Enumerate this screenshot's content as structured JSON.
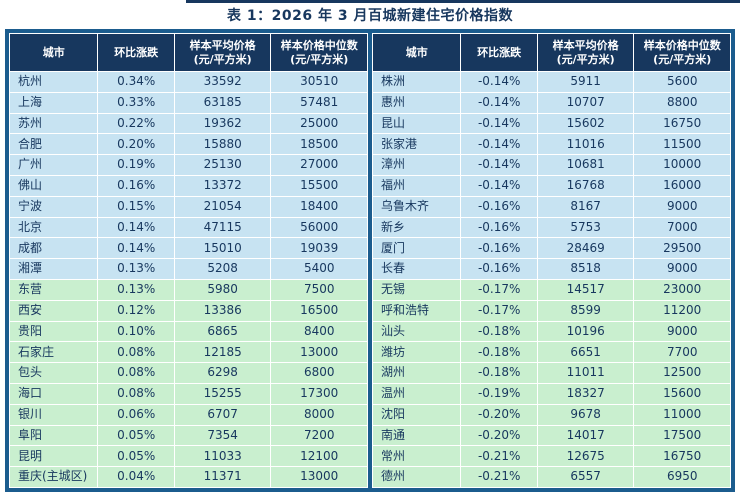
{
  "title": "表 1：2026 年 3 月百城新建住宅价格指数",
  "columns": [
    {
      "label": "城市",
      "sub": ""
    },
    {
      "label": "环比涨跌",
      "sub": ""
    },
    {
      "label": "样本平均价格",
      "sub": "(元/平方米)"
    },
    {
      "label": "样本价格中位数",
      "sub": "(元/平方米)"
    }
  ],
  "colors": {
    "header_bg": "#17375e",
    "panel_bg": "#1b5c8e",
    "row_blue": "#c7e3f2",
    "row_green": "#c9efcf",
    "text": "#17375e",
    "title_text": "#17375e"
  },
  "left_table": {
    "rows": [
      {
        "city": "杭州",
        "change": "0.34%",
        "avg": "33592",
        "median": "30510",
        "tone": "blue"
      },
      {
        "city": "上海",
        "change": "0.33%",
        "avg": "63185",
        "median": "57481",
        "tone": "blue"
      },
      {
        "city": "苏州",
        "change": "0.22%",
        "avg": "19362",
        "median": "25000",
        "tone": "blue"
      },
      {
        "city": "合肥",
        "change": "0.20%",
        "avg": "15880",
        "median": "18500",
        "tone": "blue"
      },
      {
        "city": "广州",
        "change": "0.19%",
        "avg": "25130",
        "median": "27000",
        "tone": "blue"
      },
      {
        "city": "佛山",
        "change": "0.16%",
        "avg": "13372",
        "median": "15500",
        "tone": "blue"
      },
      {
        "city": "宁波",
        "change": "0.15%",
        "avg": "21054",
        "median": "18400",
        "tone": "blue"
      },
      {
        "city": "北京",
        "change": "0.14%",
        "avg": "47115",
        "median": "56000",
        "tone": "blue"
      },
      {
        "city": "成都",
        "change": "0.14%",
        "avg": "15010",
        "median": "19039",
        "tone": "blue"
      },
      {
        "city": "湘潭",
        "change": "0.13%",
        "avg": "5208",
        "median": "5400",
        "tone": "blue"
      },
      {
        "city": "东营",
        "change": "0.13%",
        "avg": "5980",
        "median": "7500",
        "tone": "green"
      },
      {
        "city": "西安",
        "change": "0.12%",
        "avg": "13386",
        "median": "16500",
        "tone": "green"
      },
      {
        "city": "贵阳",
        "change": "0.10%",
        "avg": "6865",
        "median": "8400",
        "tone": "green"
      },
      {
        "city": "石家庄",
        "change": "0.08%",
        "avg": "12185",
        "median": "13000",
        "tone": "green"
      },
      {
        "city": "包头",
        "change": "0.08%",
        "avg": "6298",
        "median": "6800",
        "tone": "green"
      },
      {
        "city": "海口",
        "change": "0.08%",
        "avg": "15255",
        "median": "17300",
        "tone": "green"
      },
      {
        "city": "银川",
        "change": "0.06%",
        "avg": "6707",
        "median": "8000",
        "tone": "green"
      },
      {
        "city": "阜阳",
        "change": "0.05%",
        "avg": "7354",
        "median": "7200",
        "tone": "green"
      },
      {
        "city": "昆明",
        "change": "0.05%",
        "avg": "11033",
        "median": "12100",
        "tone": "green"
      },
      {
        "city": "重庆(主城区)",
        "change": "0.04%",
        "avg": "11371",
        "median": "13000",
        "tone": "green"
      }
    ]
  },
  "right_table": {
    "rows": [
      {
        "city": "株洲",
        "change": "-0.14%",
        "avg": "5911",
        "median": "5600",
        "tone": "blue"
      },
      {
        "city": "惠州",
        "change": "-0.14%",
        "avg": "10707",
        "median": "8800",
        "tone": "blue"
      },
      {
        "city": "昆山",
        "change": "-0.14%",
        "avg": "15602",
        "median": "16750",
        "tone": "blue"
      },
      {
        "city": "张家港",
        "change": "-0.14%",
        "avg": "11016",
        "median": "11500",
        "tone": "blue"
      },
      {
        "city": "漳州",
        "change": "-0.14%",
        "avg": "10681",
        "median": "10000",
        "tone": "blue"
      },
      {
        "city": "福州",
        "change": "-0.14%",
        "avg": "16768",
        "median": "16000",
        "tone": "blue"
      },
      {
        "city": "乌鲁木齐",
        "change": "-0.16%",
        "avg": "8167",
        "median": "9000",
        "tone": "blue"
      },
      {
        "city": "新乡",
        "change": "-0.16%",
        "avg": "5753",
        "median": "7000",
        "tone": "blue"
      },
      {
        "city": "厦门",
        "change": "-0.16%",
        "avg": "28469",
        "median": "29500",
        "tone": "blue"
      },
      {
        "city": "长春",
        "change": "-0.16%",
        "avg": "8518",
        "median": "9000",
        "tone": "blue"
      },
      {
        "city": "无锡",
        "change": "-0.17%",
        "avg": "14517",
        "median": "23000",
        "tone": "green"
      },
      {
        "city": "呼和浩特",
        "change": "-0.17%",
        "avg": "8599",
        "median": "11200",
        "tone": "green"
      },
      {
        "city": "汕头",
        "change": "-0.18%",
        "avg": "10196",
        "median": "9000",
        "tone": "green"
      },
      {
        "city": "潍坊",
        "change": "-0.18%",
        "avg": "6651",
        "median": "7700",
        "tone": "green"
      },
      {
        "city": "湖州",
        "change": "-0.18%",
        "avg": "11011",
        "median": "12500",
        "tone": "green"
      },
      {
        "city": "温州",
        "change": "-0.19%",
        "avg": "18327",
        "median": "15600",
        "tone": "green"
      },
      {
        "city": "沈阳",
        "change": "-0.20%",
        "avg": "9678",
        "median": "11000",
        "tone": "green"
      },
      {
        "city": "南通",
        "change": "-0.20%",
        "avg": "14017",
        "median": "17500",
        "tone": "green"
      },
      {
        "city": "常州",
        "change": "-0.21%",
        "avg": "12675",
        "median": "16750",
        "tone": "green"
      },
      {
        "city": "德州",
        "change": "-0.21%",
        "avg": "6557",
        "median": "6950",
        "tone": "green"
      }
    ]
  }
}
